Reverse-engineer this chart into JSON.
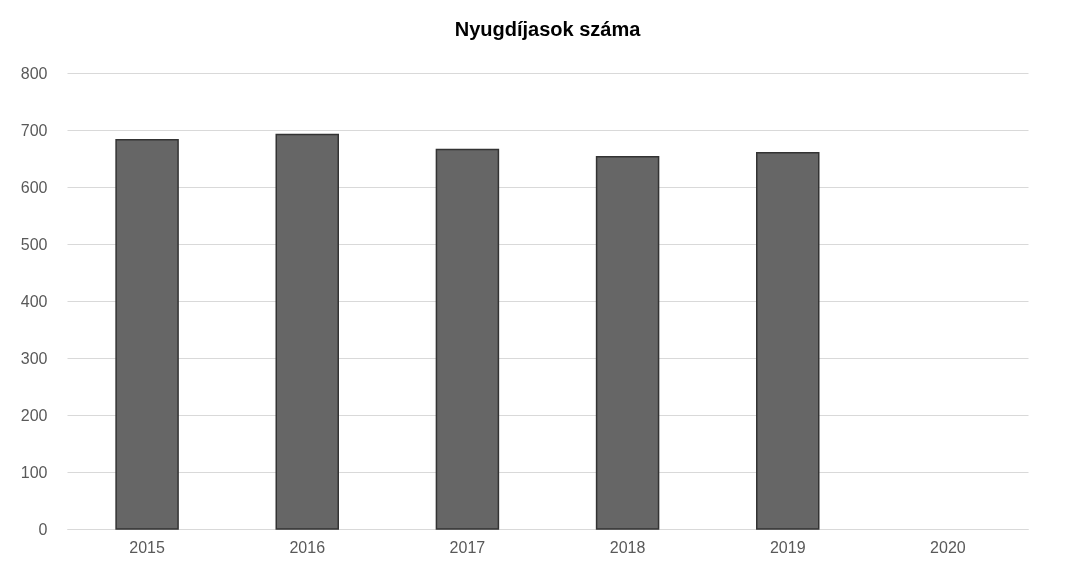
{
  "chart_data": {
    "type": "bar",
    "title": "Nyugdíjasok száma",
    "categories": [
      "2015",
      "2016",
      "2017",
      "2018",
      "2019",
      "2020"
    ],
    "values": [
      683,
      692,
      666,
      653,
      660,
      null
    ],
    "color": "#666666",
    "ylim": [
      0,
      800
    ],
    "yticks": [
      0,
      100,
      200,
      300,
      400,
      500,
      600,
      700,
      800
    ],
    "grid": "y"
  }
}
